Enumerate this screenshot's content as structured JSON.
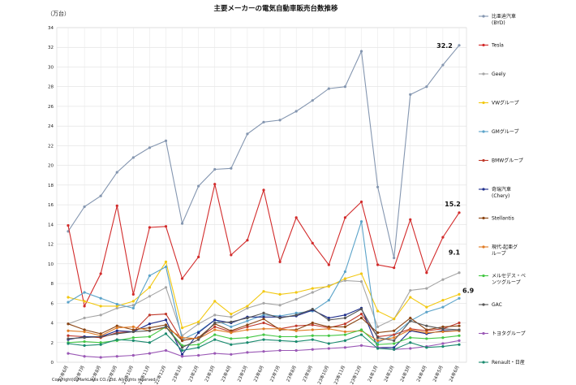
{
  "chart_data": {
    "type": "line",
    "title": "主要メーカーの電気自動車販売台数推移",
    "ylabel": "（万台）",
    "ylim": [
      0,
      34
    ],
    "ytick_step": 2,
    "grid": true,
    "legend_placement": "right",
    "copyright": "Copyright(C)MarkLines CO., Ltd. All rights reserved.",
    "categories": [
      "22年6月",
      "22年7月",
      "22年8月",
      "22年9月",
      "22年10月",
      "22年11月",
      "22年12月",
      "23年1月",
      "23年2月",
      "23年3月",
      "23年4月",
      "23年5月",
      "23年6月",
      "23年7月",
      "23年8月",
      "23年9月",
      "23年10月",
      "23年11月",
      "23年12月",
      "24年1月",
      "24年2月",
      "24年3月",
      "24年4月",
      "24年5月",
      "24年6月"
    ],
    "series": [
      {
        "name": "比亜迪汽車\n(BYD)",
        "color": "#8496b0",
        "values": [
          13.3,
          15.8,
          16.9,
          19.3,
          20.8,
          21.8,
          22.5,
          14.1,
          17.9,
          19.6,
          19.7,
          23.2,
          24.4,
          24.6,
          25.5,
          26.6,
          27.8,
          28.0,
          31.6,
          17.8,
          10.6,
          27.2,
          28.0,
          30.2,
          32.2
        ],
        "end_label": "32.2"
      },
      {
        "name": "Tesla",
        "color": "#d22b2b",
        "values": [
          13.9,
          5.7,
          9.0,
          15.9,
          6.9,
          13.7,
          13.8,
          8.5,
          10.7,
          18.1,
          10.9,
          12.4,
          17.5,
          10.2,
          14.7,
          12.1,
          9.9,
          14.7,
          16.3,
          9.9,
          9.6,
          14.5,
          9.1,
          12.7,
          15.2
        ],
        "end_label": "15.2"
      },
      {
        "name": "Geely",
        "color": "#a5a5a5",
        "values": [
          3.9,
          4.5,
          4.8,
          5.5,
          5.8,
          6.7,
          7.6,
          2.7,
          3.9,
          4.8,
          4.6,
          5.5,
          6.0,
          5.8,
          6.4,
          7.1,
          7.8,
          8.3,
          8.2,
          3.6,
          4.4,
          7.3,
          7.5,
          8.4,
          9.1
        ],
        "end_label": "9.1"
      },
      {
        "name": "VWグループ",
        "color": "#f2c811",
        "values": [
          6.6,
          6.2,
          5.7,
          5.7,
          6.2,
          7.6,
          10.2,
          3.5,
          4.1,
          6.2,
          4.9,
          5.7,
          7.2,
          6.9,
          7.1,
          7.5,
          7.7,
          8.5,
          9.0,
          5.2,
          4.4,
          6.6,
          5.6,
          6.3,
          6.9
        ],
        "end_label": "6.9"
      },
      {
        "name": "GMグループ",
        "color": "#5ba3c9",
        "values": [
          6.1,
          7.1,
          6.5,
          5.9,
          5.5,
          8.8,
          9.7,
          2.3,
          3.1,
          4.3,
          3.6,
          4.2,
          4.8,
          4.7,
          5.0,
          5.2,
          6.3,
          9.2,
          14.3,
          2.0,
          2.8,
          4.2,
          5.1,
          5.6,
          6.5
        ]
      },
      {
        "name": "BMWグループ",
        "color": "#c0392b",
        "values": [
          2.7,
          2.6,
          2.5,
          3.0,
          3.1,
          4.8,
          4.9,
          2.2,
          2.5,
          3.6,
          3.1,
          3.6,
          4.0,
          3.4,
          3.7,
          3.8,
          3.5,
          3.9,
          4.9,
          2.6,
          2.8,
          3.4,
          3.2,
          3.4,
          4.0
        ]
      },
      {
        "name": "奇瑞汽車\n(Chery)",
        "color": "#1f2f8c",
        "values": [
          2.3,
          2.6,
          2.6,
          3.2,
          3.1,
          3.9,
          4.3,
          0.8,
          3.0,
          4.3,
          4.0,
          4.6,
          4.6,
          4.6,
          4.7,
          5.3,
          4.5,
          4.8,
          5.5,
          1.5,
          1.5,
          3.2,
          2.9,
          3.2,
          3.2
        ]
      },
      {
        "name": "Stellantis",
        "color": "#8b4513",
        "values": [
          3.9,
          3.3,
          2.9,
          3.7,
          3.3,
          3.5,
          3.8,
          2.2,
          2.5,
          3.9,
          3.2,
          3.8,
          4.4,
          3.3,
          3.3,
          4.0,
          3.6,
          3.6,
          4.5,
          3.0,
          3.2,
          4.5,
          3.3,
          3.6,
          3.7
        ]
      },
      {
        "name": "現代-起亜グ\nループ",
        "color": "#e07b24",
        "values": [
          3.2,
          3.1,
          2.7,
          3.5,
          3.6,
          3.2,
          3.5,
          2.5,
          2.4,
          3.3,
          3.0,
          3.3,
          3.4,
          3.4,
          3.2,
          3.3,
          3.4,
          3.1,
          3.2,
          2.2,
          2.5,
          3.3,
          3.0,
          3.1,
          3.2
        ]
      },
      {
        "name": "メルセデス・ベ\nンツグループ",
        "color": "#44c744",
        "values": [
          2.0,
          2.1,
          2.0,
          2.2,
          2.5,
          2.6,
          3.6,
          1.7,
          1.8,
          2.8,
          2.4,
          2.5,
          2.8,
          2.6,
          2.6,
          2.7,
          2.7,
          2.8,
          3.3,
          1.8,
          1.9,
          2.5,
          2.4,
          2.5,
          2.7
        ]
      },
      {
        "name": "GAC",
        "color": "#555555",
        "values": [
          2.4,
          2.5,
          2.6,
          2.9,
          3.1,
          3.2,
          3.6,
          1.5,
          2.3,
          4.0,
          4.1,
          4.5,
          5.0,
          4.5,
          4.8,
          5.4,
          4.3,
          4.5,
          5.4,
          2.5,
          2.2,
          4.2,
          3.7,
          3.4,
          3.3
        ]
      },
      {
        "name": "トヨタグループ",
        "color": "#9b59b6",
        "values": [
          0.9,
          0.6,
          0.5,
          0.6,
          0.7,
          0.9,
          1.2,
          0.6,
          0.7,
          0.9,
          0.8,
          1.0,
          1.1,
          1.2,
          1.2,
          1.3,
          1.4,
          1.5,
          1.7,
          1.5,
          1.3,
          1.4,
          1.6,
          1.9,
          2.2
        ]
      },
      {
        "name": "Renault・日産",
        "color": "#1a8a6e",
        "values": [
          1.9,
          1.7,
          1.8,
          2.3,
          2.2,
          2.0,
          2.9,
          1.2,
          1.5,
          2.3,
          1.8,
          2.0,
          2.3,
          2.2,
          2.1,
          2.3,
          1.9,
          2.2,
          2.8,
          1.4,
          1.3,
          2.0,
          1.5,
          1.6,
          1.8
        ]
      }
    ]
  }
}
